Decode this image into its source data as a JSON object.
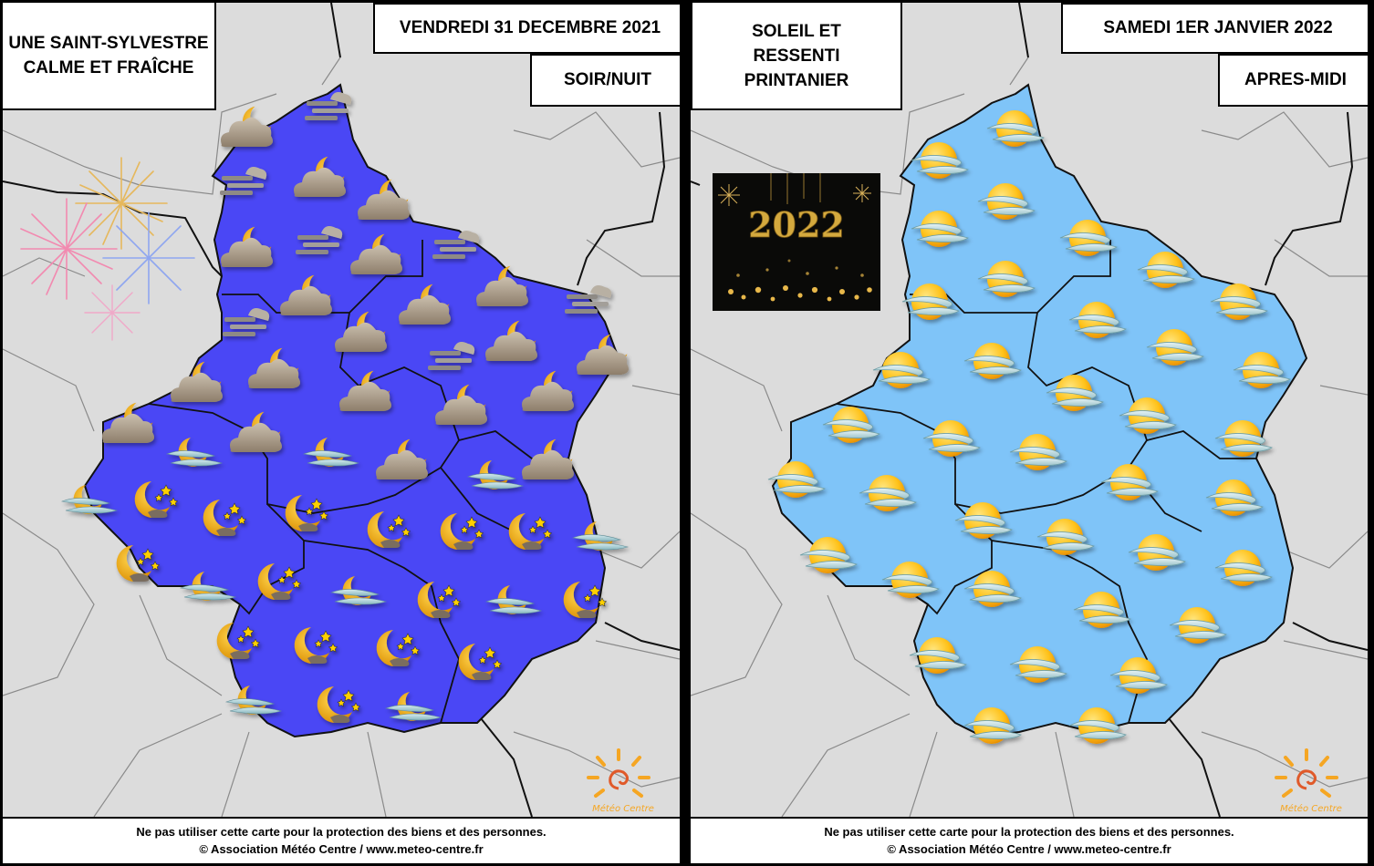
{
  "left": {
    "headline": [
      "UNE SAINT-SYLVESTRE",
      "CALME ET FRAÎCHE"
    ],
    "date": "VENDREDI 31 DECEMBRE 2021",
    "period": "SOIR/NUIT",
    "region_color": "#4a47f5"
  },
  "right": {
    "headline": [
      "SOLEIL ET",
      "RESSENTI",
      "PRINTANIER"
    ],
    "date": "SAMEDI 1ER JANVIER 2022",
    "period": "APRES-MIDI",
    "region_color": "#7fc4f8",
    "inset_year": "2022"
  },
  "footer": {
    "line1": "Ne pas utiliser cette carte pour la protection des biens et des personnes.",
    "line2": "© Association Météo Centre / www.meteo-centre.fr"
  },
  "logo_text": "Météo Centre",
  "icons": {
    "left": [
      "moon-cloud-icon",
      "fog-icon",
      "moon-stars-icon",
      "moon-fog-icon"
    ],
    "right": [
      "sun-fog-icon"
    ]
  },
  "colors": {
    "outside": "#dcdcdc",
    "border_line": "#222222",
    "outside_border": "#888888"
  }
}
